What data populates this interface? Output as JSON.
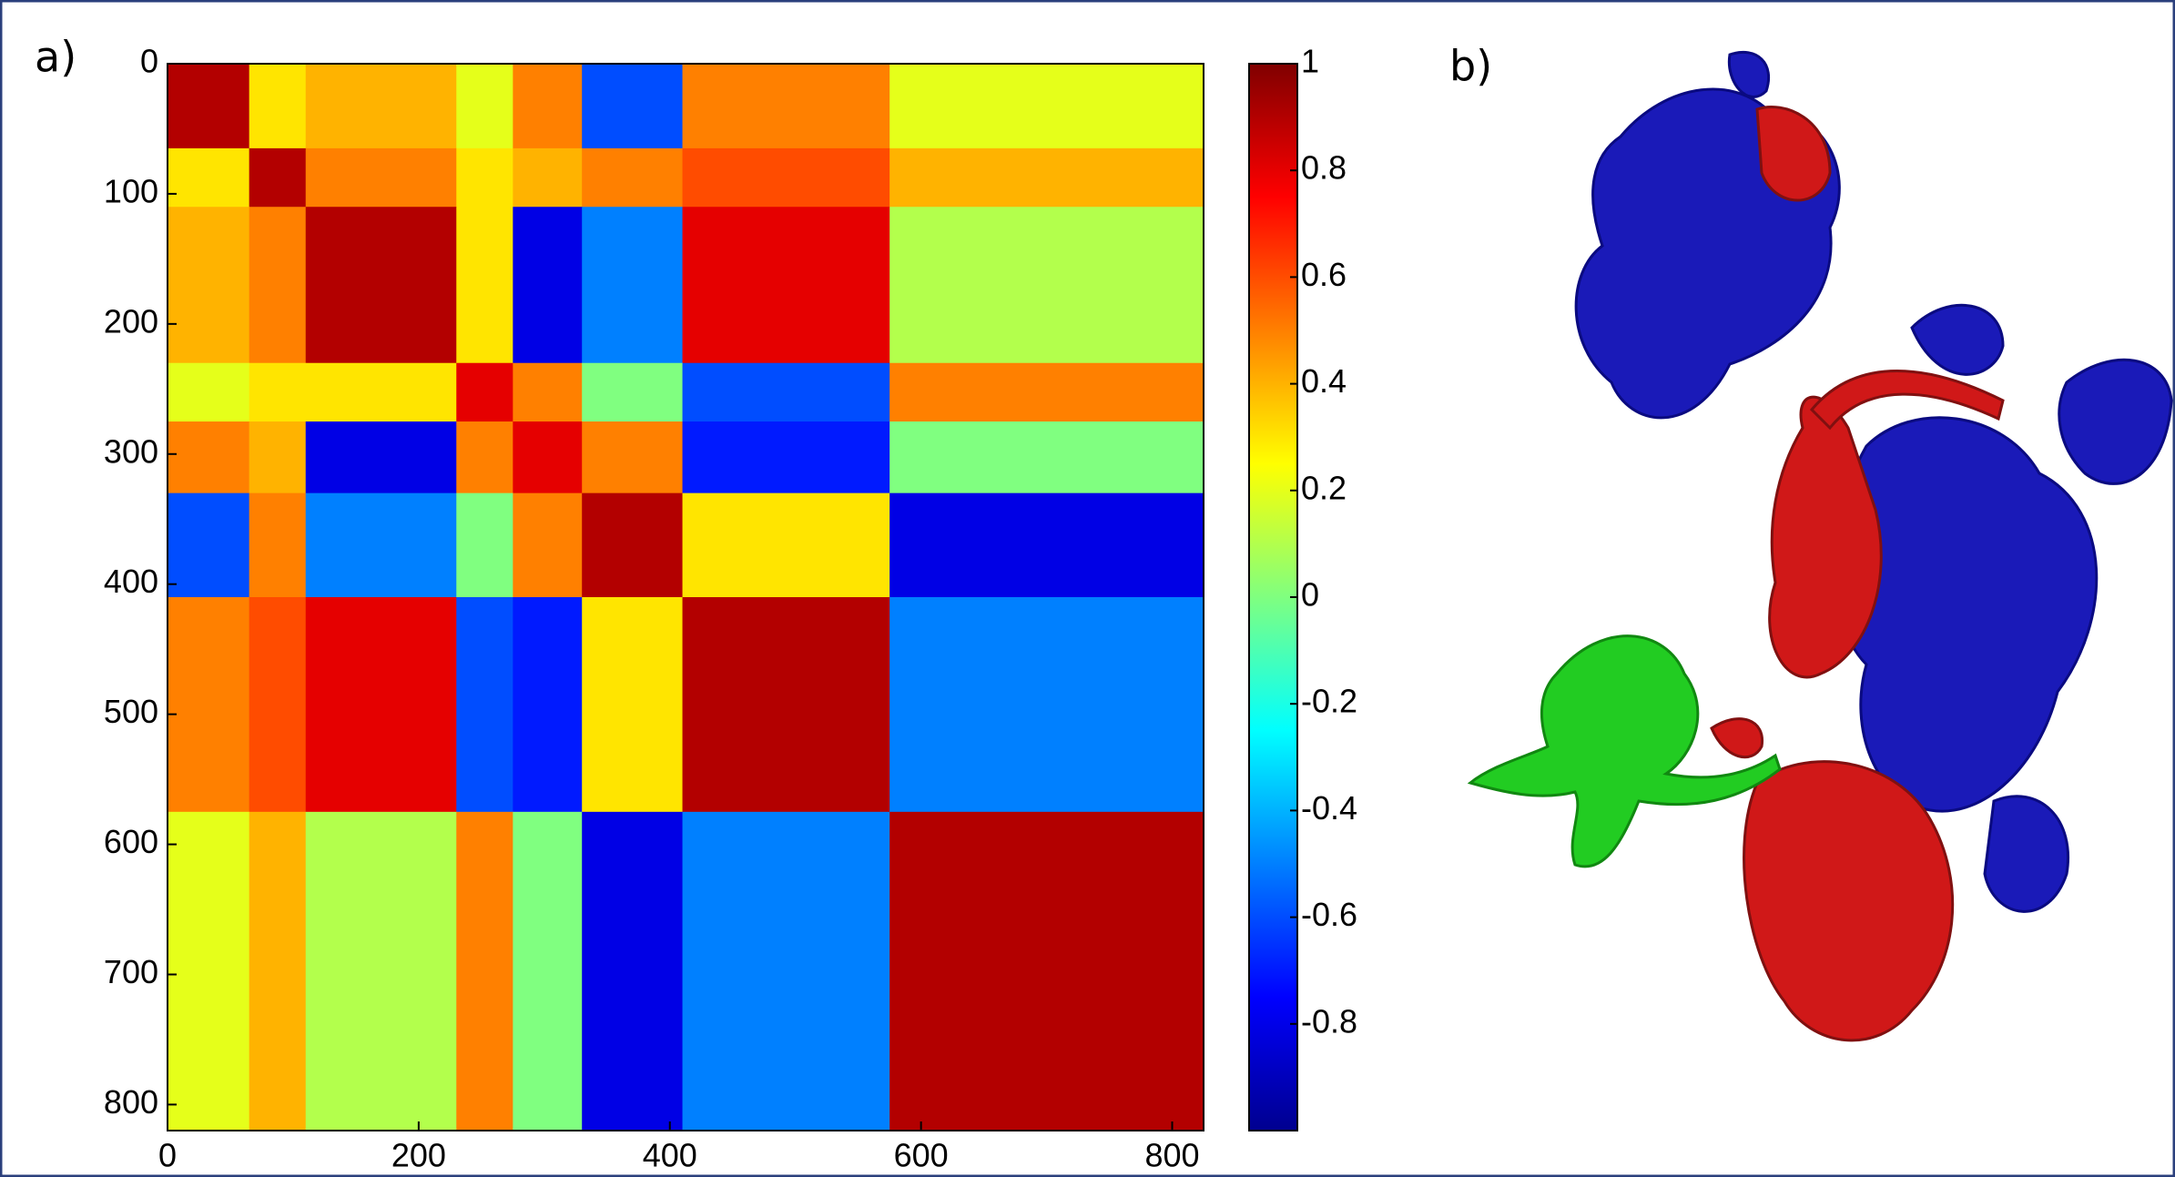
{
  "chart_data": {
    "type": "heatmap",
    "panel_label": "a)",
    "xbins": [
      0,
      65,
      110,
      230,
      275,
      330,
      410,
      575,
      825
    ],
    "ybins": [
      0,
      65,
      110,
      230,
      275,
      330,
      410,
      575,
      820
    ],
    "values": [
      [
        0.9,
        0.3,
        0.4,
        0.2,
        0.5,
        -0.6,
        0.5,
        0.2
      ],
      [
        0.3,
        0.9,
        0.5,
        0.3,
        0.4,
        0.5,
        0.6,
        0.4
      ],
      [
        0.4,
        0.5,
        0.9,
        0.3,
        -0.8,
        -0.5,
        0.8,
        0.1
      ],
      [
        0.2,
        0.3,
        0.3,
        0.8,
        0.5,
        0.0,
        -0.6,
        0.5
      ],
      [
        0.5,
        0.4,
        -0.8,
        0.5,
        0.8,
        0.5,
        -0.7,
        0.0
      ],
      [
        -0.6,
        0.5,
        -0.5,
        0.0,
        0.5,
        0.9,
        0.3,
        -0.8
      ],
      [
        0.5,
        0.6,
        0.8,
        -0.6,
        -0.7,
        0.3,
        0.9,
        -0.5
      ],
      [
        0.2,
        0.4,
        0.1,
        0.5,
        0.0,
        -0.8,
        -0.5,
        0.9
      ]
    ],
    "xlim": [
      0,
      825
    ],
    "xticks": [
      0,
      200,
      400,
      600,
      800
    ],
    "ylim": [
      0,
      820
    ],
    "yticks": [
      0,
      100,
      200,
      300,
      400,
      500,
      600,
      700,
      800
    ],
    "colormap": "jet",
    "colorbar": {
      "lim": [
        -1,
        1
      ],
      "ticks": [
        1,
        0.8,
        0.6,
        0.4,
        0.2,
        0,
        -0.2,
        -0.4,
        -0.6,
        -0.8
      ]
    }
  },
  "panel_b": {
    "label": "b)"
  }
}
